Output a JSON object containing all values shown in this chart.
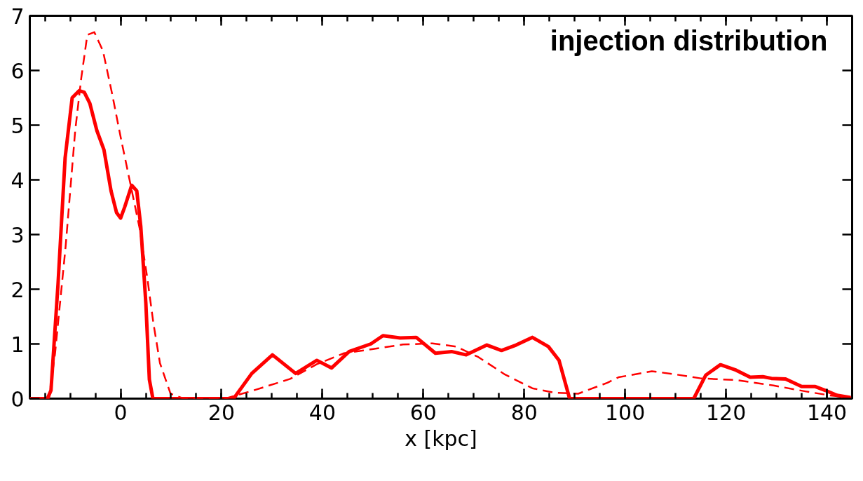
{
  "chart_data": {
    "type": "line",
    "xlabel": "x [kpc]",
    "annotations": [
      "injection distribution"
    ],
    "xlim": [
      -18,
      145
    ],
    "ylim": [
      0,
      7
    ],
    "xticks": [
      0,
      20,
      40,
      60,
      80,
      100,
      120,
      140
    ],
    "yticks": [
      0,
      1,
      2,
      3,
      4,
      5,
      6,
      7
    ],
    "grid": false,
    "series": [
      {
        "color": "#ff0000",
        "line_style": "solid",
        "x": [
          -18,
          -14.5,
          -13.8,
          -12.4,
          -11,
          -9.6,
          -8.2,
          -7.2,
          -6.1,
          -4.7,
          -3.3,
          -1.9,
          -0.8,
          0,
          0.8,
          2.2,
          3.2,
          4,
          5,
          5.7,
          6.4,
          22.4,
          26,
          30.1,
          34.7,
          38.9,
          41.8,
          45.3,
          49.6,
          52,
          55.4,
          58.6,
          62.4,
          65.6,
          68.5,
          72.6,
          75.5,
          78.4,
          81.6,
          84.8,
          86.9,
          89,
          113.6,
          116,
          118.9,
          122,
          124.8,
          127.3,
          129,
          131.8,
          135,
          137.7,
          139.7,
          142,
          144.7
        ],
        "values": [
          0,
          0,
          0.15,
          2.1,
          4.4,
          5.5,
          5.63,
          5.6,
          5.4,
          4.9,
          4.55,
          3.8,
          3.4,
          3.3,
          3.5,
          3.9,
          3.8,
          3.15,
          1.75,
          0.35,
          0,
          0,
          0.46,
          0.8,
          0.46,
          0.7,
          0.56,
          0.86,
          1.0,
          1.15,
          1.11,
          1.12,
          0.83,
          0.86,
          0.8,
          0.98,
          0.88,
          0.98,
          1.12,
          0.95,
          0.7,
          0,
          0,
          0.43,
          0.62,
          0.52,
          0.39,
          0.4,
          0.37,
          0.36,
          0.22,
          0.22,
          0.15,
          0.06,
          0.02
        ]
      },
      {
        "color": "#ff0000",
        "line_style": "dashed",
        "x": [
          -18,
          -14.2,
          -13,
          -10.9,
          -9,
          -7.8,
          -6.6,
          -5.2,
          -3.5,
          -1.7,
          0.1,
          2,
          3.8,
          5.3,
          6.5,
          7.8,
          9.9,
          12.5,
          20.7,
          26,
          33.6,
          38.9,
          44.3,
          49.6,
          56,
          61.8,
          66.6,
          70.9,
          76.2,
          81.6,
          85.8,
          90.7,
          96.5,
          98.7,
          105.3,
          109.5,
          115,
          122,
          129.4,
          135.9,
          140.5,
          145
        ],
        "values": [
          0,
          0,
          0.82,
          2.78,
          4.9,
          5.86,
          6.65,
          6.7,
          6.36,
          5.58,
          4.74,
          3.9,
          3.1,
          2.2,
          1.38,
          0.65,
          0.09,
          0,
          0,
          0.14,
          0.36,
          0.63,
          0.83,
          0.9,
          0.99,
          1.01,
          0.95,
          0.76,
          0.44,
          0.19,
          0.11,
          0.09,
          0.29,
          0.39,
          0.5,
          0.45,
          0.37,
          0.34,
          0.24,
          0.13,
          0.06,
          0.02
        ]
      }
    ]
  }
}
